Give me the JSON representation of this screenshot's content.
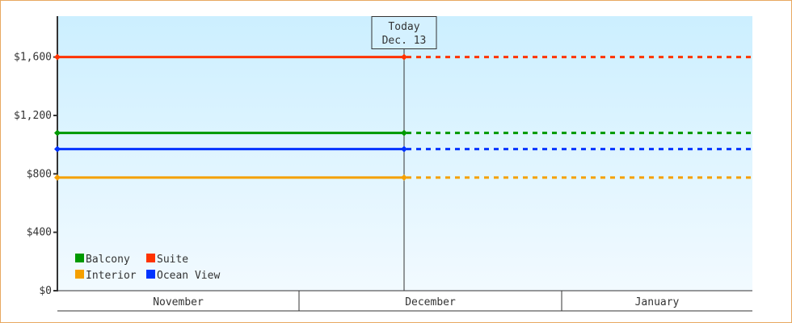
{
  "chart_data": {
    "type": "line",
    "ylim": [
      0,
      1880
    ],
    "y_ticks": [
      0,
      400,
      800,
      1200,
      1600
    ],
    "y_tick_labels": [
      "$0",
      "$400",
      "$800",
      "$1,200",
      "$1,600"
    ],
    "x_months": [
      "November",
      "December",
      "January"
    ],
    "today_marker": {
      "line1": "Today",
      "line2": "Dec. 13"
    },
    "series": [
      {
        "name": "Suite",
        "value": 1600,
        "color": "#ff3300"
      },
      {
        "name": "Balcony",
        "value": 1080,
        "color": "#009900"
      },
      {
        "name": "Ocean View",
        "value": 970,
        "color": "#0033ff"
      },
      {
        "name": "Interior",
        "value": 775,
        "color": "#f5a000"
      }
    ],
    "legend_order": [
      "Balcony",
      "Suite",
      "Interior",
      "Ocean View"
    ],
    "legend_placement": "bottom-left",
    "background_gradient": [
      "#ccefff",
      "#f2faff"
    ]
  }
}
